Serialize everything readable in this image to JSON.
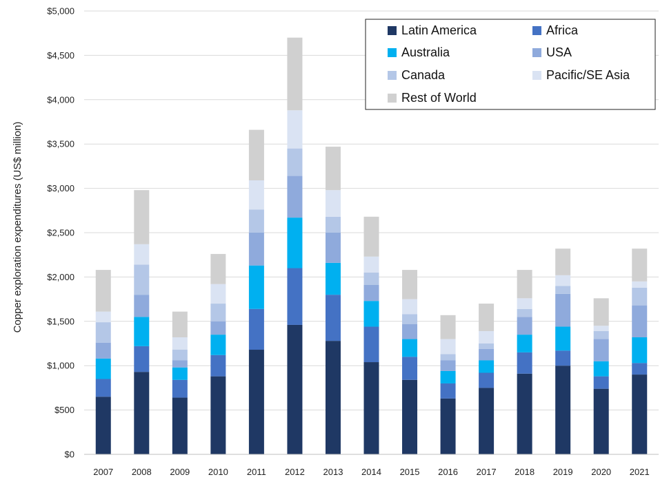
{
  "chart_data": {
    "type": "bar",
    "stacked": true,
    "ylabel": "Copper exploration expenditures (US$ million)",
    "xlabel": "",
    "ylim": [
      0,
      5000
    ],
    "yticks": [
      0,
      500,
      1000,
      1500,
      2000,
      2500,
      3000,
      3500,
      4000,
      4500,
      5000
    ],
    "ytick_labels": [
      "$0",
      "$500",
      "$1,000",
      "$1,500",
      "$2,000",
      "$2,500",
      "$3,000",
      "$3,500",
      "$4,000",
      "$4,500",
      "$5,000"
    ],
    "grid": true,
    "legend_position": "top-right",
    "categories": [
      "2007",
      "2008",
      "2009",
      "2010",
      "2011",
      "2012",
      "2013",
      "2014",
      "2015",
      "2016",
      "2017",
      "2018",
      "2019",
      "2020",
      "2021"
    ],
    "series": [
      {
        "name": "Latin America",
        "color": "#1f3864",
        "values": [
          650,
          930,
          640,
          880,
          1180,
          1460,
          1280,
          1040,
          840,
          630,
          750,
          910,
          1000,
          740,
          900
        ]
      },
      {
        "name": "Africa",
        "color": "#4472c4",
        "values": [
          200,
          290,
          200,
          240,
          460,
          640,
          520,
          400,
          260,
          170,
          170,
          240,
          170,
          140,
          130
        ]
      },
      {
        "name": "Australia",
        "color": "#00b0f0",
        "values": [
          230,
          330,
          140,
          230,
          490,
          570,
          360,
          290,
          200,
          140,
          140,
          200,
          270,
          170,
          290
        ]
      },
      {
        "name": "USA",
        "color": "#8faadc",
        "values": [
          180,
          250,
          80,
          150,
          370,
          470,
          340,
          180,
          170,
          120,
          130,
          200,
          370,
          250,
          360
        ]
      },
      {
        "name": "Canada",
        "color": "#b4c7e7",
        "values": [
          230,
          340,
          120,
          200,
          260,
          310,
          180,
          140,
          110,
          70,
          60,
          90,
          90,
          90,
          200
        ]
      },
      {
        "name": "Pacific/SE Asia",
        "color": "#dae3f3",
        "values": [
          120,
          230,
          140,
          220,
          330,
          430,
          300,
          180,
          170,
          170,
          140,
          120,
          120,
          60,
          70
        ]
      },
      {
        "name": "Rest of World",
        "color": "#d0d0d0",
        "values": [
          470,
          610,
          290,
          340,
          570,
          820,
          490,
          450,
          330,
          270,
          310,
          320,
          300,
          310,
          370
        ]
      }
    ]
  }
}
